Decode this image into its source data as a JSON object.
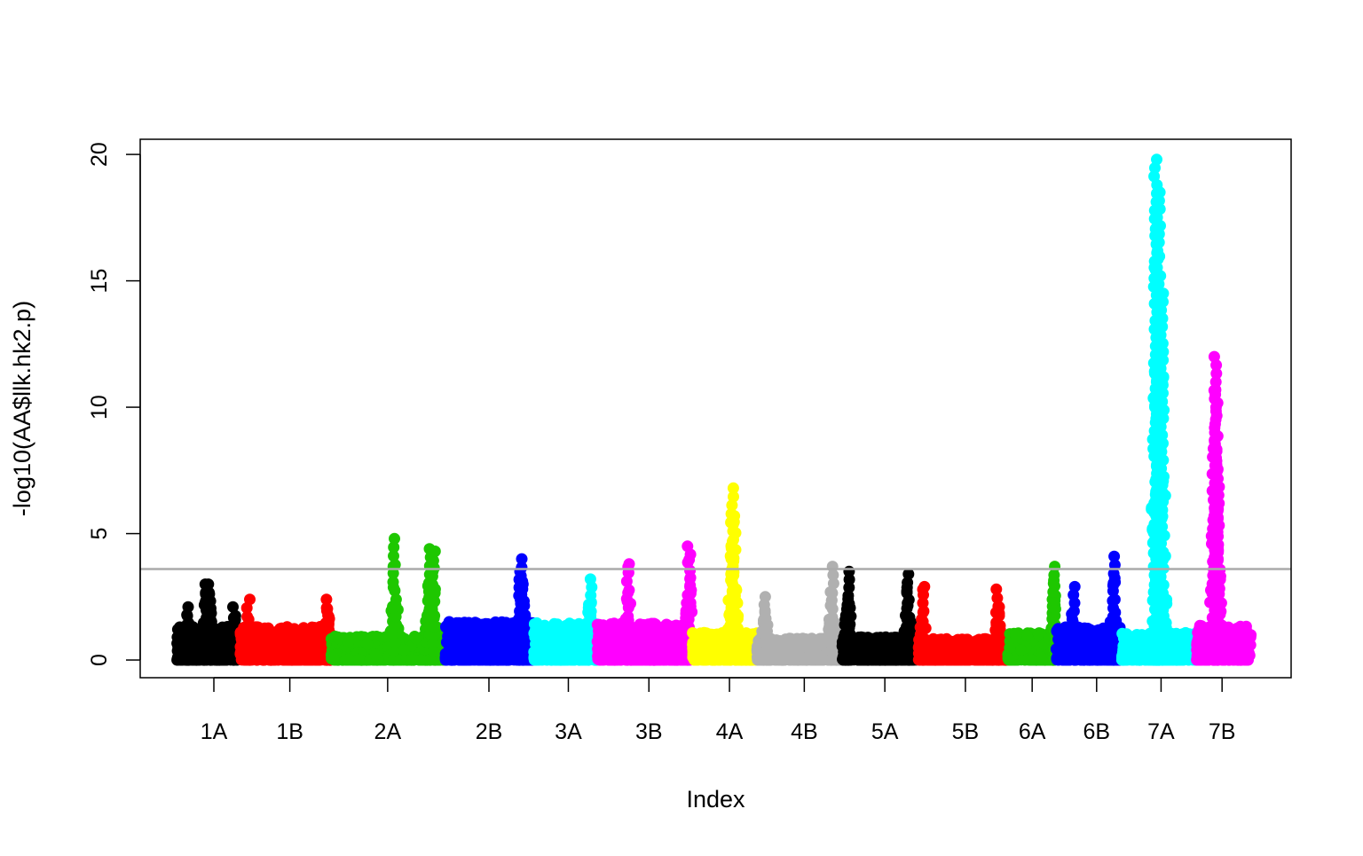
{
  "chart_data": {
    "type": "scatter",
    "title": "",
    "xlabel": "Index",
    "ylabel": "-log10(AA$llk.hk2.p)",
    "ylim": [
      -0.7,
      20.6
    ],
    "yticks": [
      "0",
      "5",
      "10",
      "15",
      "20"
    ],
    "yticks_values": [
      0,
      5,
      10,
      15,
      20
    ],
    "threshold": {
      "value": 3.6,
      "color": "#aaaaaa"
    },
    "grid": false,
    "legend": "none",
    "xlim": [
      0,
      1000
    ],
    "chromosomes": [
      {
        "name": "1A",
        "start": 32,
        "end": 87,
        "tick": 64,
        "color": "#000000",
        "peaks": [
          [
            41,
            2.1
          ],
          [
            57,
            3.0
          ],
          [
            60,
            3.0
          ],
          [
            82,
            2.1
          ]
        ]
      },
      {
        "name": "1B",
        "start": 87,
        "end": 166,
        "tick": 130,
        "color": "#ff0000",
        "peaks": [
          [
            94,
            2.4
          ],
          [
            163,
            2.4
          ]
        ]
      },
      {
        "name": "2A",
        "start": 166,
        "end": 265,
        "tick": 215,
        "color": "#1ec700",
        "peaks": [
          [
            221,
            4.8
          ],
          [
            251,
            4.4
          ],
          [
            255,
            4.3
          ]
        ]
      },
      {
        "name": "2B",
        "start": 265,
        "end": 342,
        "tick": 303,
        "color": "#0000ff",
        "peaks": [
          [
            332,
            4.0
          ],
          [
            330,
            3.5
          ]
        ]
      },
      {
        "name": "3A",
        "start": 342,
        "end": 397,
        "tick": 372,
        "color": "#00ffff",
        "peaks": [
          [
            391,
            3.2
          ]
        ]
      },
      {
        "name": "3B",
        "start": 397,
        "end": 480,
        "tick": 442,
        "color": "#ff00ff",
        "peaks": [
          [
            424,
            3.8
          ],
          [
            477,
            4.5
          ]
        ]
      },
      {
        "name": "4A",
        "start": 480,
        "end": 536,
        "tick": 512,
        "color": "#ffff00",
        "peaks": [
          [
            514,
            6.8
          ],
          [
            516,
            5.7
          ]
        ]
      },
      {
        "name": "4B",
        "start": 536,
        "end": 610,
        "tick": 577,
        "color": "#b0b0b0",
        "peaks": [
          [
            601,
            3.7
          ],
          [
            543,
            2.5
          ]
        ]
      },
      {
        "name": "5A",
        "start": 610,
        "end": 676,
        "tick": 647,
        "color": "#000000",
        "peaks": [
          [
            615,
            3.5
          ],
          [
            667,
            3.4
          ]
        ]
      },
      {
        "name": "5B",
        "start": 676,
        "end": 754,
        "tick": 717,
        "color": "#ff0000",
        "peaks": [
          [
            680,
            2.9
          ],
          [
            745,
            2.8
          ]
        ]
      },
      {
        "name": "6A",
        "start": 754,
        "end": 796,
        "tick": 775,
        "color": "#1ec700",
        "peaks": [
          [
            794,
            3.7
          ]
        ]
      },
      {
        "name": "6B",
        "start": 796,
        "end": 853,
        "tick": 831,
        "color": "#0000ff",
        "peaks": [
          [
            846,
            4.1
          ],
          [
            811,
            2.9
          ]
        ]
      },
      {
        "name": "7A",
        "start": 853,
        "end": 918,
        "tick": 887,
        "color": "#00ffff",
        "peaks": [
          [
            882,
            19.8
          ],
          [
            885,
            18.5
          ],
          [
            888,
            14.5
          ],
          [
            883,
            12.0
          ],
          [
            886,
            9.5
          ]
        ]
      },
      {
        "name": "7B",
        "start": 918,
        "end": 965,
        "tick": 940,
        "color": "#ff00ff",
        "peaks": [
          [
            934,
            12.0
          ],
          [
            935,
            10.5
          ],
          [
            933,
            8.7
          ],
          [
            936,
            7.5
          ]
        ]
      }
    ]
  }
}
